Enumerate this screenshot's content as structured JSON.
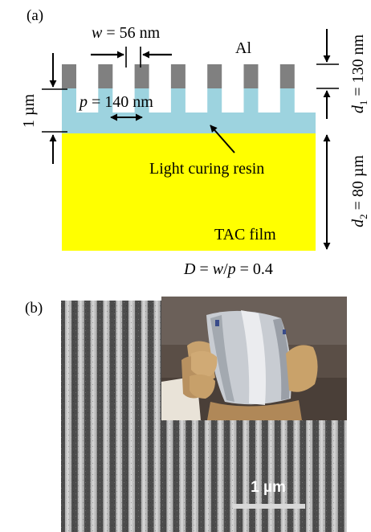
{
  "panel_a": {
    "label": "(a)",
    "w_label": {
      "var": "w",
      "rest": " = 56 nm"
    },
    "p_label": {
      "var": "p",
      "rest": " = 140 nm"
    },
    "al_label": "Al",
    "one_um_label": "1 µm",
    "resin_label": "Light curing resin",
    "tac_label": "TAC film",
    "d1_label": {
      "var": "d",
      "sub": "1",
      "rest": " = 130 nm"
    },
    "d2_label": {
      "var": "d",
      "sub": "2",
      "rest": " = 80 µm"
    },
    "duty_label": {
      "v1": "D",
      "eq1": " = ",
      "v2": "w",
      "slash": "/",
      "v3": "p",
      "rest": " = 0.4"
    },
    "colors": {
      "al": "#808080",
      "resin": "#9dd3df",
      "tac": "#ffff00"
    }
  },
  "panel_b": {
    "label": "(b)",
    "scalebar_label": "1 µm",
    "colors": {
      "sem_bg": "#5a5a5a",
      "sem_line": "#b4b4b4",
      "scalebar": "#d8d8d8"
    }
  }
}
